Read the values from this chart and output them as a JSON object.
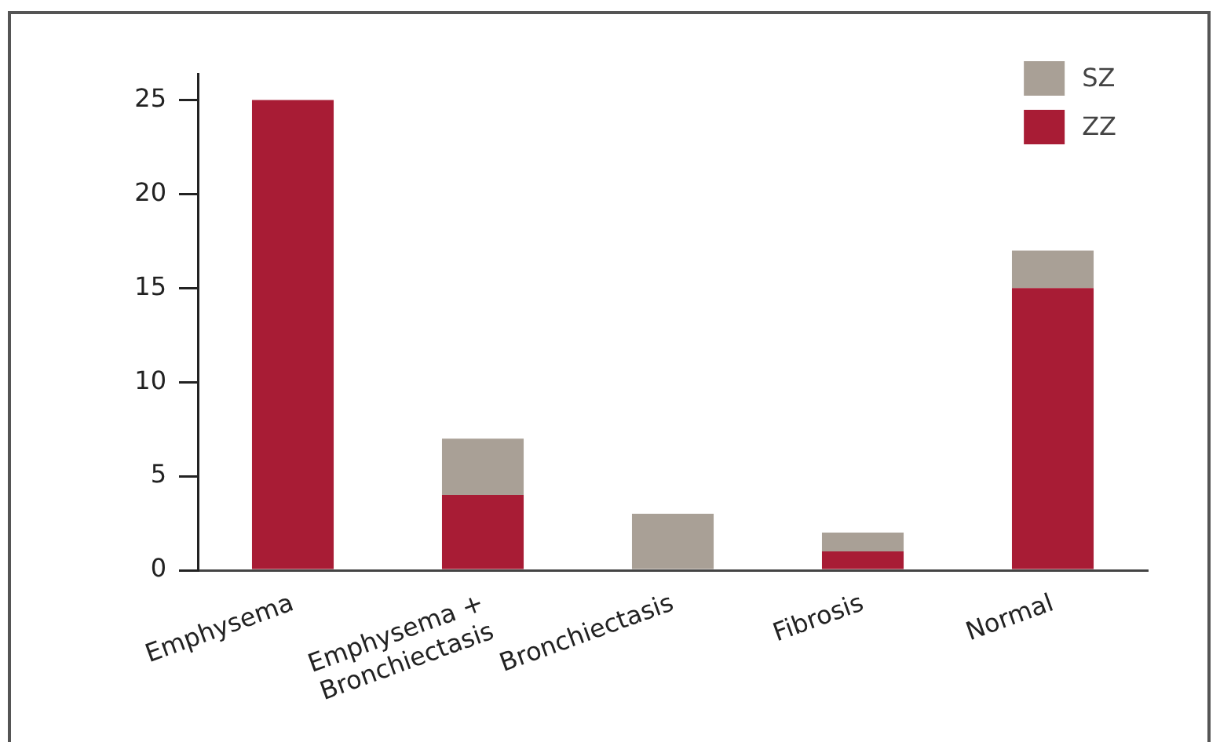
{
  "chart_data": {
    "type": "bar",
    "stacked": true,
    "categories": [
      "Emphysema",
      "Emphysema +\nBronchiectasis",
      "Bronchiectasis",
      "Fibrosis",
      "Normal"
    ],
    "series": [
      {
        "name": "ZZ",
        "color": "#a81c35",
        "values": [
          25,
          4,
          0,
          1,
          15
        ]
      },
      {
        "name": "SZ",
        "color": "#a9a096",
        "values": [
          0,
          3,
          3,
          1,
          2
        ]
      }
    ],
    "ylim": [
      0,
      26.4
    ],
    "yticks": [
      0,
      5,
      10,
      15,
      20,
      25
    ],
    "grid": false,
    "legend": "top right"
  }
}
